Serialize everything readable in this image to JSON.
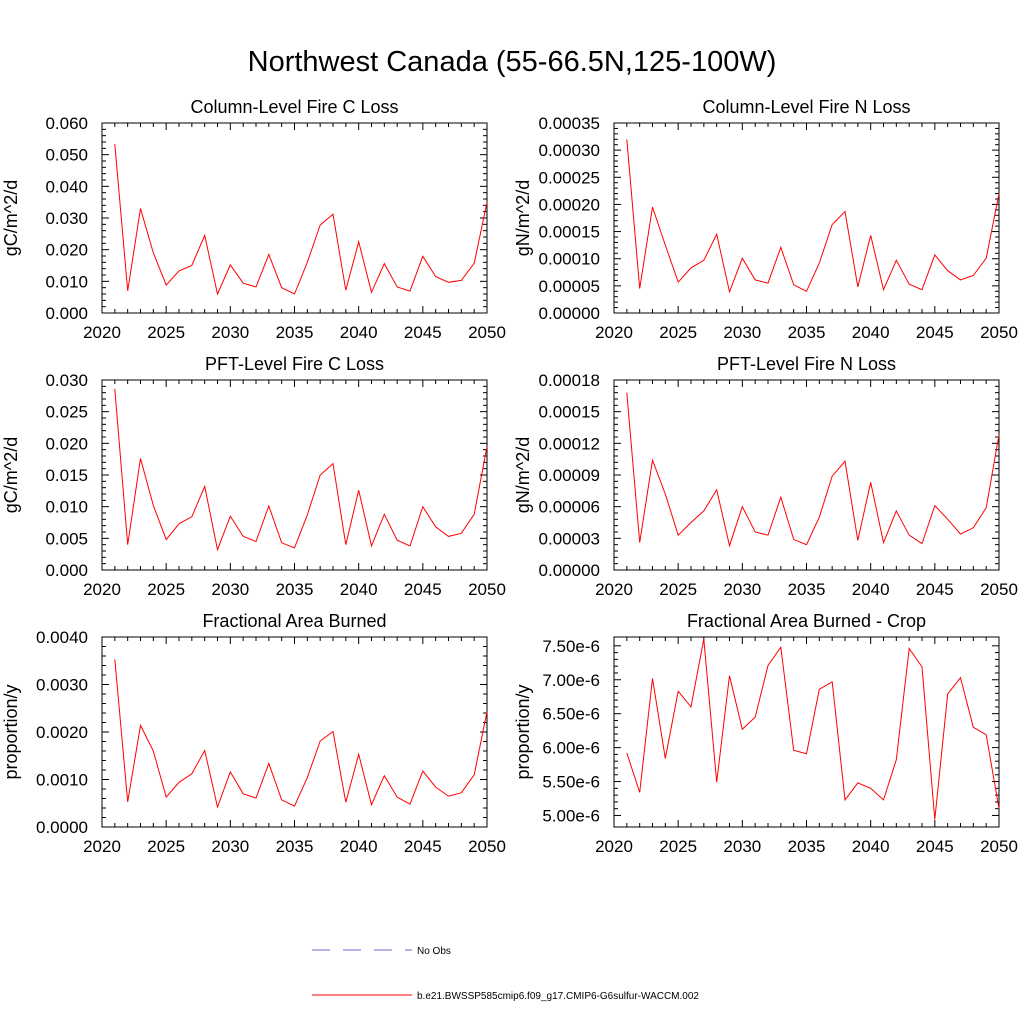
{
  "page_title": "Northwest Canada (55-66.5N,125-100W)",
  "colors": {
    "series": "#ff0000",
    "obs": "#6a6ad0",
    "axis": "#000000"
  },
  "legend": {
    "items": [
      {
        "label": "No Obs",
        "style": "dashed",
        "color": "#6a6ad0"
      },
      {
        "label": "b.e21.BWSSP585cmip6.f09_g17.CMIP6-G6sulfur-WACCM.002",
        "style": "solid",
        "color": "#ff0000"
      }
    ]
  },
  "chart_data": [
    {
      "type": "line",
      "title": "Column-Level Fire C Loss",
      "xlabel": "",
      "ylabel": "gC/m^2/d",
      "xlim": [
        2020,
        2050
      ],
      "ylim": [
        0,
        0.06
      ],
      "xticks": [
        "2020",
        "2025",
        "2030",
        "2035",
        "2040",
        "2045",
        "2050"
      ],
      "yticks": [
        "0.000",
        "0.010",
        "0.020",
        "0.030",
        "0.040",
        "0.050",
        "0.060"
      ],
      "x": [
        2021,
        2022,
        2023,
        2024,
        2025,
        2026,
        2027,
        2028,
        2029,
        2030,
        2031,
        2032,
        2033,
        2034,
        2035,
        2036,
        2037,
        2038,
        2039,
        2040,
        2041,
        2042,
        2043,
        2044,
        2045,
        2046,
        2047,
        2048,
        2049,
        2050
      ],
      "series": [
        {
          "values": [
            0.0533,
            0.007,
            0.033,
            0.019,
            0.0088,
            0.0133,
            0.015,
            0.0245,
            0.006,
            0.0152,
            0.0094,
            0.0082,
            0.0185,
            0.008,
            0.006,
            0.016,
            0.0278,
            0.0312,
            0.0072,
            0.0225,
            0.0065,
            0.0156,
            0.0082,
            0.0069,
            0.0179,
            0.0115,
            0.0097,
            0.0103,
            0.0157,
            0.035
          ]
        }
      ]
    },
    {
      "type": "line",
      "title": "Column-Level Fire N Loss",
      "xlabel": "",
      "ylabel": "gN/m^2/d",
      "xlim": [
        2020,
        2050
      ],
      "ylim": [
        0,
        0.00035
      ],
      "xticks": [
        "2020",
        "2025",
        "2030",
        "2035",
        "2040",
        "2045",
        "2050"
      ],
      "yticks": [
        "0.00000",
        "0.00005",
        "0.00010",
        "0.00015",
        "0.00020",
        "0.00025",
        "0.00030",
        "0.00035"
      ],
      "x": [
        2021,
        2022,
        2023,
        2024,
        2025,
        2026,
        2027,
        2028,
        2029,
        2030,
        2031,
        2032,
        2033,
        2034,
        2035,
        2036,
        2037,
        2038,
        2039,
        2040,
        2041,
        2042,
        2043,
        2044,
        2045,
        2046,
        2047,
        2048,
        2049,
        2050
      ],
      "series": [
        {
          "values": [
            0.00032,
            4.5e-05,
            0.000195,
            0.000125,
            5.7e-05,
            8.3e-05,
            9.7e-05,
            0.000145,
            3.9e-05,
            0.000101,
            6.1e-05,
            5.5e-05,
            0.000121,
            5.2e-05,
            4e-05,
            9.2e-05,
            0.000163,
            0.000187,
            4.8e-05,
            0.000143,
            4.3e-05,
            9.7e-05,
            5.3e-05,
            4.3e-05,
            0.000107,
            7.8e-05,
            6.1e-05,
            6.9e-05,
            0.000101,
            0.00022
          ]
        }
      ]
    },
    {
      "type": "line",
      "title": "PFT-Level Fire C Loss",
      "xlabel": "",
      "ylabel": "gC/m^2/d",
      "xlim": [
        2020,
        2050
      ],
      "ylim": [
        0,
        0.03
      ],
      "xticks": [
        "2020",
        "2025",
        "2030",
        "2035",
        "2040",
        "2045",
        "2050"
      ],
      "yticks": [
        "0.000",
        "0.005",
        "0.010",
        "0.015",
        "0.020",
        "0.025",
        "0.030"
      ],
      "x": [
        2021,
        2022,
        2023,
        2024,
        2025,
        2026,
        2027,
        2028,
        2029,
        2030,
        2031,
        2032,
        2033,
        2034,
        2035,
        2036,
        2037,
        2038,
        2039,
        2040,
        2041,
        2042,
        2043,
        2044,
        2045,
        2046,
        2047,
        2048,
        2049,
        2050
      ],
      "series": [
        {
          "values": [
            0.0286,
            0.004,
            0.0176,
            0.0102,
            0.0048,
            0.0073,
            0.0084,
            0.0132,
            0.0032,
            0.0085,
            0.0053,
            0.0045,
            0.0101,
            0.0043,
            0.0035,
            0.0087,
            0.015,
            0.0168,
            0.004,
            0.0126,
            0.0038,
            0.0088,
            0.0047,
            0.0038,
            0.01,
            0.0068,
            0.0053,
            0.0058,
            0.0088,
            0.0195
          ]
        }
      ]
    },
    {
      "type": "line",
      "title": "PFT-Level Fire N Loss",
      "xlabel": "",
      "ylabel": "gN/m^2/d",
      "xlim": [
        2020,
        2050
      ],
      "ylim": [
        0,
        0.00018
      ],
      "xticks": [
        "2020",
        "2025",
        "2030",
        "2035",
        "2040",
        "2045",
        "2050"
      ],
      "yticks": [
        "0.00000",
        "0.00003",
        "0.00006",
        "0.00009",
        "0.00012",
        "0.00015",
        "0.00018"
      ],
      "x": [
        2021,
        2022,
        2023,
        2024,
        2025,
        2026,
        2027,
        2028,
        2029,
        2030,
        2031,
        2032,
        2033,
        2034,
        2035,
        2036,
        2037,
        2038,
        2039,
        2040,
        2041,
        2042,
        2043,
        2044,
        2045,
        2046,
        2047,
        2048,
        2049,
        2050
      ],
      "series": [
        {
          "values": [
            0.000168,
            2.6e-05,
            0.000104,
            7.2e-05,
            3.3e-05,
            4.5e-05,
            5.6e-05,
            7.6e-05,
            2.3e-05,
            6e-05,
            3.6e-05,
            3.3e-05,
            6.9e-05,
            2.9e-05,
            2.4e-05,
            5e-05,
            8.9e-05,
            0.000103,
            2.8e-05,
            8.3e-05,
            2.6e-05,
            5.6e-05,
            3.3e-05,
            2.5e-05,
            6.1e-05,
            4.8e-05,
            3.4e-05,
            4e-05,
            5.9e-05,
            0.000128
          ]
        }
      ]
    },
    {
      "type": "line",
      "title": "Fractional Area Burned",
      "xlabel": "",
      "ylabel": "proportion/y",
      "xlim": [
        2020,
        2050
      ],
      "ylim": [
        0,
        0.004
      ],
      "xticks": [
        "2020",
        "2025",
        "2030",
        "2035",
        "2040",
        "2045",
        "2050"
      ],
      "yticks": [
        "0.0000",
        "0.0010",
        "0.0020",
        "0.0030",
        "0.0040"
      ],
      "x": [
        2021,
        2022,
        2023,
        2024,
        2025,
        2026,
        2027,
        2028,
        2029,
        2030,
        2031,
        2032,
        2033,
        2034,
        2035,
        2036,
        2037,
        2038,
        2039,
        2040,
        2041,
        2042,
        2043,
        2044,
        2045,
        2046,
        2047,
        2048,
        2049,
        2050
      ],
      "series": [
        {
          "values": [
            0.00353,
            0.00053,
            0.00214,
            0.0016,
            0.00063,
            0.00094,
            0.00112,
            0.00161,
            0.00042,
            0.00116,
            0.0007,
            0.00061,
            0.00134,
            0.00057,
            0.00044,
            0.00104,
            0.00181,
            0.00201,
            0.00052,
            0.00153,
            0.00047,
            0.00108,
            0.00063,
            0.00048,
            0.00118,
            0.00084,
            0.00065,
            0.00072,
            0.0011,
            0.00243
          ]
        }
      ]
    },
    {
      "type": "line",
      "title": "Fractional Area Burned - Crop",
      "xlabel": "",
      "ylabel": "proportion/y",
      "xlim": [
        2020,
        2050
      ],
      "ylim": [
        4.83e-06,
        7.63e-06
      ],
      "xticks": [
        "2020",
        "2025",
        "2030",
        "2035",
        "2040",
        "2045",
        "2050"
      ],
      "yticks": [
        "5.00e-6",
        "5.50e-6",
        "6.00e-6",
        "6.50e-6",
        "7.00e-6",
        "7.50e-6"
      ],
      "ytick_values": [
        5e-06,
        5.5e-06,
        6e-06,
        6.5e-06,
        7e-06,
        7.5e-06
      ],
      "x": [
        2021,
        2022,
        2023,
        2024,
        2025,
        2026,
        2027,
        2028,
        2029,
        2030,
        2031,
        2032,
        2033,
        2034,
        2035,
        2036,
        2037,
        2038,
        2039,
        2040,
        2041,
        2042,
        2043,
        2044,
        2045,
        2046,
        2047,
        2048,
        2049,
        2050
      ],
      "series": [
        {
          "values": [
            5.92e-06,
            5.34e-06,
            7.02e-06,
            5.84e-06,
            6.83e-06,
            6.6e-06,
            7.6e-06,
            5.49e-06,
            7.06e-06,
            6.27e-06,
            6.45e-06,
            7.21e-06,
            7.48e-06,
            5.96e-06,
            5.91e-06,
            6.86e-06,
            6.97e-06,
            5.23e-06,
            5.48e-06,
            5.4e-06,
            5.23e-06,
            5.82e-06,
            7.46e-06,
            7.19e-06,
            4.94e-06,
            6.79e-06,
            7.03e-06,
            6.3e-06,
            6.19e-06,
            5.1e-06
          ]
        }
      ]
    }
  ]
}
